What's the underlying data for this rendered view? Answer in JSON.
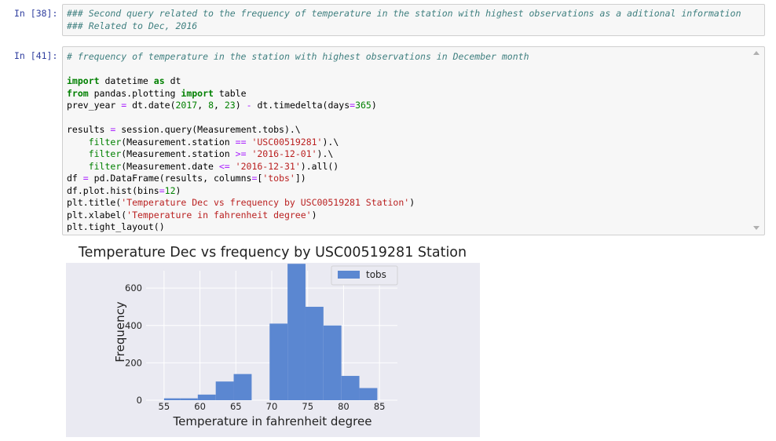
{
  "cells": [
    {
      "prompt": "In [38]:",
      "lines": [
        "### Second query related to the frequency of temperature in the station with highest observations as a aditional information",
        "### Related to Dec, 2016"
      ]
    },
    {
      "prompt": "In [41]:",
      "comment": "# frequency of temperature in the station with highest observations in December month"
    }
  ],
  "chart_data": {
    "type": "bar",
    "title": "Temperature Dec vs frequency by USC00519281 Station",
    "xlabel": "Temperature in fahrenheit degree",
    "ylabel": "Frequency",
    "bins": [
      {
        "x0": 55.0,
        "x1": 57.3,
        "value": 10
      },
      {
        "x0": 57.3,
        "x1": 59.7,
        "value": 10
      },
      {
        "x0": 59.7,
        "x1": 62.2,
        "value": 30
      },
      {
        "x0": 62.2,
        "x1": 64.7,
        "value": 100
      },
      {
        "x0": 64.7,
        "x1": 67.2,
        "value": 140
      },
      {
        "x0": 67.2,
        "x1": 69.7,
        "value": 0
      },
      {
        "x0": 69.7,
        "x1": 72.2,
        "value": 410
      },
      {
        "x0": 72.2,
        "x1": 74.7,
        "value": 730
      },
      {
        "x0": 74.7,
        "x1": 77.2,
        "value": 500
      },
      {
        "x0": 77.2,
        "x1": 79.7,
        "value": 400
      },
      {
        "x0": 79.7,
        "x1": 82.2,
        "value": 130
      },
      {
        "x0": 82.2,
        "x1": 84.7,
        "value": 65
      }
    ],
    "xlim": [
      52.5,
      87.5
    ],
    "ylim": [
      0,
      735
    ],
    "xticks": [
      55,
      60,
      65,
      70,
      75,
      80,
      85
    ],
    "yticks": [
      0,
      200,
      400,
      600
    ],
    "series": [
      {
        "name": "tobs",
        "color": "#5b87d1"
      }
    ],
    "legend": "top-right",
    "grid": true
  }
}
